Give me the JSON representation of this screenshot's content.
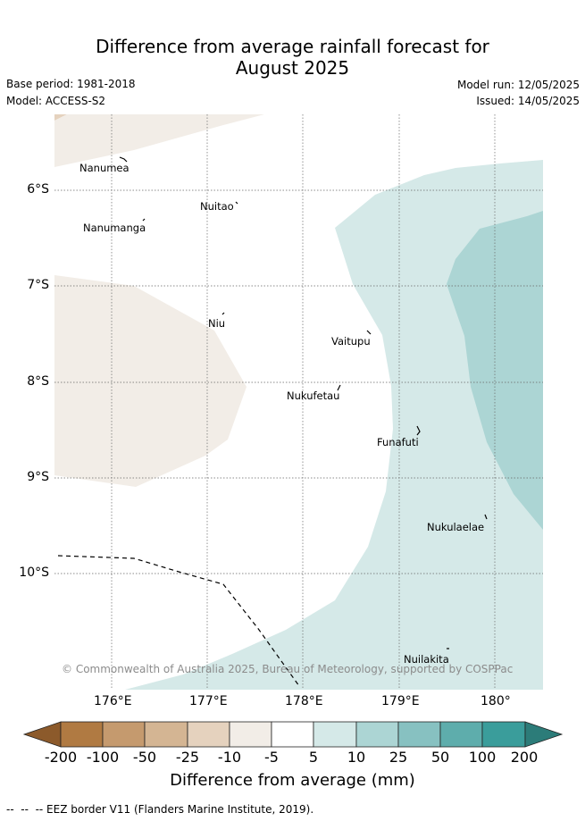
{
  "title_line1": "Difference from average rainfall forecast for",
  "title_line2": "August 2025",
  "base_period": "Base period: 1981-2018",
  "model": "Model: ACCESS-S2",
  "model_run": "Model run: 12/05/2025",
  "issued": "Issued: 14/05/2025",
  "lat_ticks": [
    "6°S",
    "7°S",
    "8°S",
    "9°S",
    "10°S"
  ],
  "lon_ticks": [
    "176°E",
    "177°E",
    "178°E",
    "179°E",
    "180°"
  ],
  "islands": [
    "Nanumea",
    "Nuitao",
    "Nanumanga",
    "Niu",
    "Vaitupu",
    "Nukufetau",
    "Funafuti",
    "Nukulaelae",
    "Nuilakita"
  ],
  "copyright": "© Commonwealth of Australia 2025, Bureau of Meteorology, supported by COSPPac",
  "colorbar": {
    "labels": [
      "-200",
      "-100",
      "-50",
      "-25",
      "-10",
      "-5",
      "5",
      "10",
      "25",
      "50",
      "100",
      "200"
    ],
    "colors": [
      "#8c5a2b",
      "#b07a42",
      "#c59a6e",
      "#d4b593",
      "#e5d2be",
      "#f2ede7",
      "#ffffff",
      "#d5e9e8",
      "#acd5d4",
      "#87c1c1",
      "#5eadac",
      "#3a9d9b",
      "#2c7c79"
    ],
    "title": "Difference from average (mm)"
  },
  "footnote": "--  --  -- EEZ border V11 (Flanders Marine Institute, 2019)."
}
